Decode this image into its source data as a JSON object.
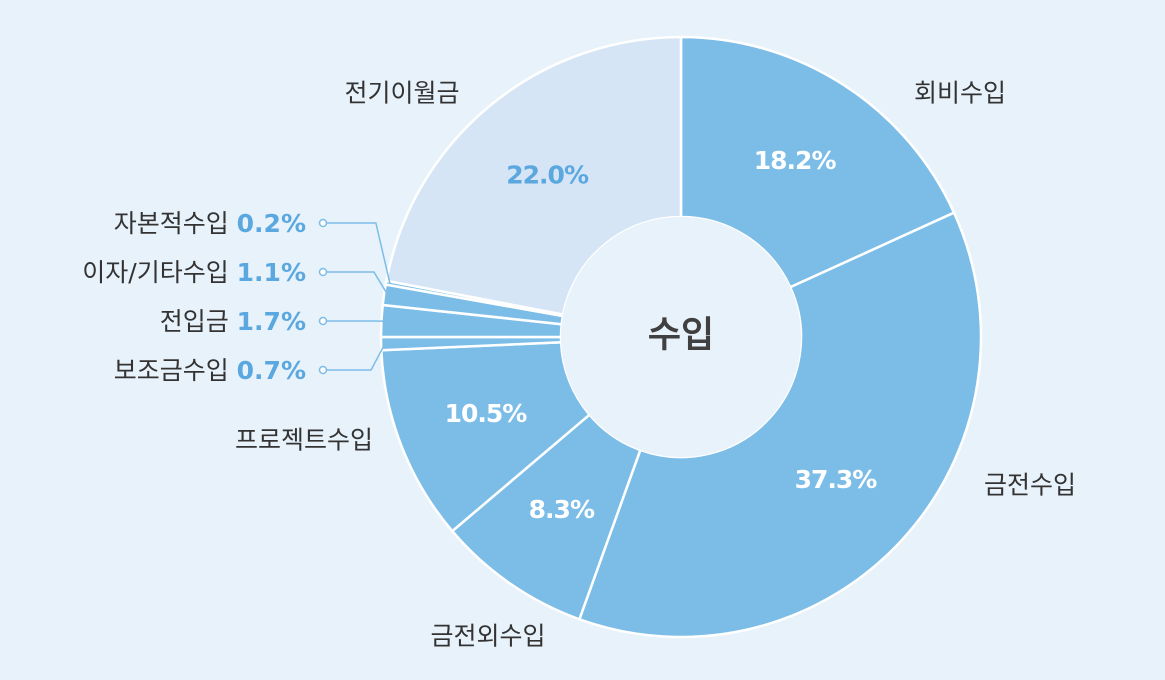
{
  "chart_data": {
    "type": "pie",
    "title": "수입",
    "slices": [
      {
        "label": "회비수입",
        "value": 18.2,
        "value_label": "18.2%",
        "color": "#7cbde8",
        "pct_color": "#ffffff"
      },
      {
        "label": "금전수입",
        "value": 37.3,
        "value_label": "37.3%",
        "color": "#7cbde8",
        "pct_color": "#ffffff"
      },
      {
        "label": "금전외수입",
        "value": 8.3,
        "value_label": "8.3%",
        "color": "#7cbde8",
        "pct_color": "#ffffff"
      },
      {
        "label": "프로젝트수입",
        "value": 10.5,
        "value_label": "10.5%",
        "color": "#7cbde8",
        "pct_color": "#ffffff"
      },
      {
        "label": "보조금수입",
        "value": 0.7,
        "value_label": "0.7%",
        "color": "#7cbde8",
        "pct_color": "#5aa8df"
      },
      {
        "label": "전입금",
        "value": 1.7,
        "value_label": "1.7%",
        "color": "#7cbde8",
        "pct_color": "#5aa8df"
      },
      {
        "label": "이자/기타수입",
        "value": 1.1,
        "value_label": "1.1%",
        "color": "#7cbde8",
        "pct_color": "#5aa8df"
      },
      {
        "label": "자본적수입",
        "value": 0.2,
        "value_label": "0.2%",
        "color": "#7cbde8",
        "pct_color": "#5aa8df"
      },
      {
        "label": "전기이월금",
        "value": 22.0,
        "value_label": "22.0%",
        "color": "#d5e5f5",
        "pct_color": "#5aa8df"
      }
    ]
  }
}
